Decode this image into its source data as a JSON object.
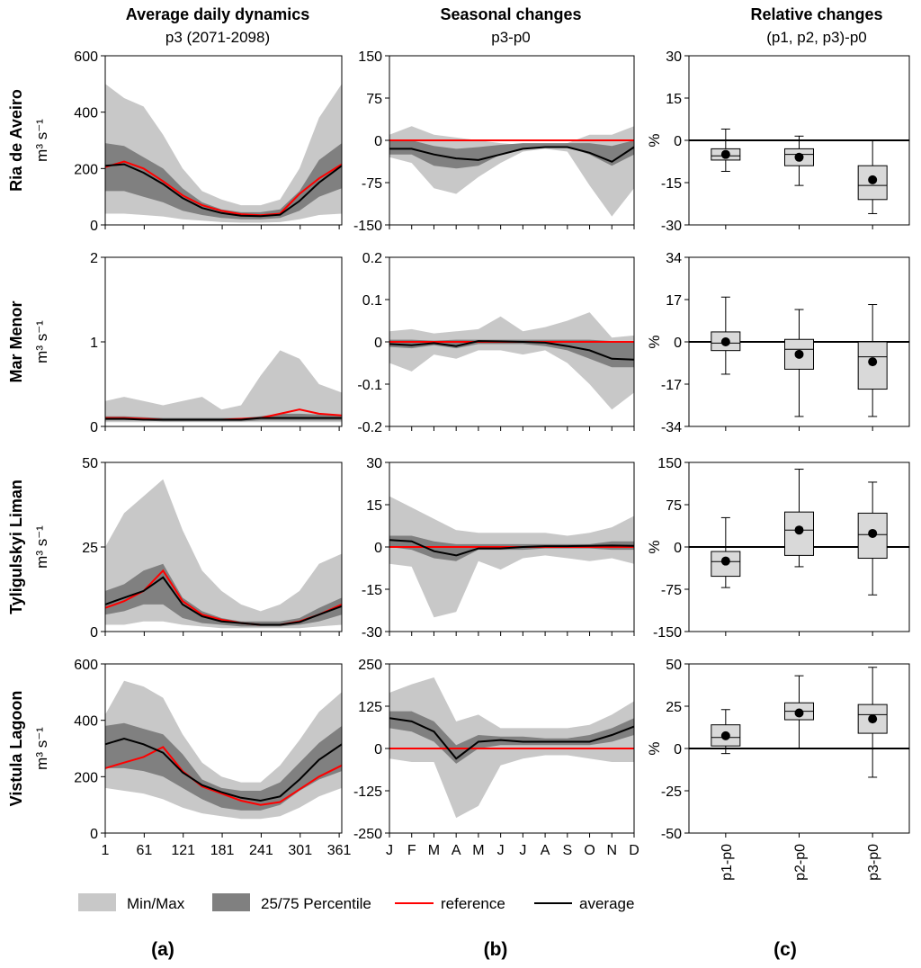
{
  "colors": {
    "minmax": "#c8c8c8",
    "percentile": "#808080",
    "reference": "#ff0000",
    "average": "#000000",
    "box_fill": "#d9d9d9",
    "zero_line": "#000000"
  },
  "column_titles": {
    "a_title": "Average daily dynamics",
    "a_subtitle": "p3 (2071-2098)",
    "b_title": "Seasonal changes",
    "b_subtitle": "p3-p0",
    "c_title": "Relative changes",
    "c_subtitle": "(p1, p2, p3)-p0"
  },
  "panel_labels": {
    "a": "(a)",
    "b": "(b)",
    "c": "(c)"
  },
  "legend": [
    "Min/Max",
    "25/75 Percentile",
    "reference",
    "average"
  ],
  "unit_label": "m³ s⁻¹",
  "percent_label": "%",
  "chart_data": {
    "type": "composite",
    "x_days_ticks": [
      "1",
      "61",
      "121",
      "181",
      "241",
      "301",
      "361"
    ],
    "months": [
      "J",
      "F",
      "M",
      "A",
      "M",
      "J",
      "J",
      "A",
      "S",
      "O",
      "N",
      "D"
    ],
    "box_categories": [
      "p1-p0",
      "p2-p0",
      "p3-p0"
    ],
    "rows": [
      {
        "name": "Ria de Aveiro",
        "daily": {
          "ylim": [
            0,
            600
          ],
          "yticks": [
            "0",
            "200",
            "400",
            "600"
          ],
          "days": [
            1,
            30,
            60,
            90,
            120,
            150,
            180,
            210,
            240,
            270,
            300,
            330,
            365
          ],
          "min": [
            40,
            40,
            35,
            30,
            20,
            15,
            10,
            8,
            8,
            10,
            20,
            35,
            40
          ],
          "max": [
            500,
            450,
            420,
            320,
            200,
            120,
            90,
            70,
            70,
            90,
            200,
            380,
            500
          ],
          "p25": [
            120,
            120,
            100,
            80,
            50,
            35,
            25,
            20,
            20,
            25,
            50,
            100,
            130
          ],
          "p75": [
            290,
            280,
            240,
            200,
            130,
            80,
            55,
            45,
            45,
            55,
            120,
            230,
            290
          ],
          "reference": [
            205,
            225,
            200,
            155,
            105,
            70,
            50,
            38,
            34,
            40,
            110,
            165,
            215
          ],
          "average": [
            210,
            215,
            185,
            145,
            95,
            60,
            42,
            33,
            31,
            36,
            85,
            150,
            210
          ]
        },
        "seasonal": {
          "ylim": [
            -150,
            150
          ],
          "yticks": [
            "-150",
            "-75",
            "0",
            "75",
            "150"
          ],
          "min": [
            -30,
            -40,
            -85,
            -95,
            -65,
            -40,
            -20,
            -15,
            -20,
            -80,
            -135,
            -85
          ],
          "max": [
            10,
            25,
            10,
            5,
            0,
            -5,
            -8,
            -10,
            -5,
            10,
            10,
            25
          ],
          "p25": [
            -25,
            -25,
            -45,
            -50,
            -45,
            -25,
            -15,
            -12,
            -12,
            -25,
            -45,
            -25
          ],
          "p75": [
            0,
            0,
            -10,
            -15,
            -12,
            -8,
            -5,
            -5,
            -5,
            -5,
            -10,
            0
          ],
          "average": [
            -15,
            -15,
            -25,
            -32,
            -35,
            -25,
            -15,
            -12,
            -12,
            -22,
            -38,
            -12
          ]
        },
        "boxes": {
          "ylim": [
            -30,
            30
          ],
          "yticks": [
            "-30",
            "-15",
            "0",
            "15",
            "30"
          ],
          "items": [
            {
              "min": -11,
              "q1": -7,
              "median": -5.5,
              "q3": -3,
              "max": 4,
              "mean": -5
            },
            {
              "min": -16,
              "q1": -9,
              "median": -5,
              "q3": -3,
              "max": 1.5,
              "mean": -6
            },
            {
              "min": -26,
              "q1": -21,
              "median": -16,
              "q3": -9,
              "max": 0,
              "mean": -14
            }
          ]
        }
      },
      {
        "name": "Mar Menor",
        "daily": {
          "ylim": [
            0,
            2
          ],
          "yticks": [
            "0",
            "1",
            "2"
          ],
          "days": [
            1,
            30,
            60,
            90,
            120,
            150,
            180,
            210,
            240,
            270,
            300,
            330,
            365
          ],
          "min": [
            0.05,
            0.05,
            0.05,
            0.05,
            0.05,
            0.05,
            0.05,
            0.05,
            0.05,
            0.05,
            0.05,
            0.05,
            0.05
          ],
          "max": [
            0.3,
            0.35,
            0.3,
            0.25,
            0.3,
            0.35,
            0.2,
            0.25,
            0.6,
            0.9,
            0.8,
            0.5,
            0.4
          ],
          "p25": [
            0.07,
            0.07,
            0.07,
            0.06,
            0.06,
            0.06,
            0.06,
            0.06,
            0.07,
            0.07,
            0.07,
            0.07,
            0.07
          ],
          "p75": [
            0.12,
            0.12,
            0.11,
            0.1,
            0.1,
            0.1,
            0.1,
            0.1,
            0.12,
            0.15,
            0.15,
            0.14,
            0.13
          ],
          "reference": [
            0.1,
            0.1,
            0.09,
            0.08,
            0.08,
            0.08,
            0.08,
            0.09,
            0.1,
            0.15,
            0.2,
            0.15,
            0.13
          ],
          "average": [
            0.09,
            0.09,
            0.08,
            0.08,
            0.08,
            0.08,
            0.08,
            0.08,
            0.1,
            0.1,
            0.1,
            0.1,
            0.1
          ]
        },
        "seasonal": {
          "ylim": [
            -0.2,
            0.2
          ],
          "yticks": [
            "-0.2",
            "-0.1",
            "0",
            "0.1",
            "0.2"
          ],
          "min": [
            -0.05,
            -0.07,
            -0.03,
            -0.04,
            -0.02,
            -0.02,
            -0.03,
            -0.02,
            -0.05,
            -0.1,
            -0.16,
            -0.12
          ],
          "max": [
            0.025,
            0.03,
            0.02,
            0.025,
            0.03,
            0.06,
            0.025,
            0.035,
            0.05,
            0.07,
            0.01,
            0.015
          ],
          "p25": [
            -0.012,
            -0.015,
            -0.008,
            -0.015,
            -0.005,
            -0.005,
            -0.005,
            -0.01,
            -0.02,
            -0.04,
            -0.06,
            -0.06
          ],
          "p75": [
            0.005,
            0.005,
            0.003,
            0.005,
            0.005,
            0.005,
            0.005,
            0.005,
            0.005,
            0.005,
            0.002,
            0.002
          ],
          "average": [
            -0.005,
            -0.008,
            -0.003,
            -0.01,
            0.002,
            0.001,
            0.0,
            -0.002,
            -0.01,
            -0.02,
            -0.04,
            -0.042
          ]
        },
        "boxes": {
          "ylim": [
            -34,
            34
          ],
          "yticks": [
            "-34",
            "-17",
            "0",
            "17",
            "34"
          ],
          "items": [
            {
              "min": -13,
              "q1": -3.5,
              "median": -0.5,
              "q3": 4,
              "max": 18,
              "mean": 0
            },
            {
              "min": -30,
              "q1": -11,
              "median": -3,
              "q3": 1,
              "max": 13,
              "mean": -5
            },
            {
              "min": -30,
              "q1": -19,
              "median": -6,
              "q3": 0,
              "max": 15,
              "mean": -8
            }
          ]
        }
      },
      {
        "name": "Tyligulskyi Liman",
        "daily": {
          "ylim": [
            0,
            50
          ],
          "yticks": [
            "0",
            "25",
            "50"
          ],
          "days": [
            1,
            30,
            60,
            90,
            120,
            150,
            180,
            210,
            240,
            270,
            300,
            330,
            365
          ],
          "min": [
            2,
            2,
            3,
            3,
            2,
            1.5,
            1,
            1,
            1,
            1,
            1,
            1.5,
            2
          ],
          "max": [
            25,
            35,
            40,
            45,
            30,
            18,
            12,
            8,
            6,
            8,
            12,
            20,
            23
          ],
          "p25": [
            5,
            6,
            8,
            8,
            4,
            2.5,
            2,
            1.5,
            1.5,
            1.5,
            2,
            3,
            5
          ],
          "p75": [
            12,
            14,
            18,
            20,
            10,
            6,
            4,
            3,
            3,
            3,
            4,
            7,
            10
          ],
          "reference": [
            7,
            9,
            12,
            18,
            9,
            5,
            3.5,
            2.5,
            2,
            2,
            3,
            5,
            8
          ],
          "average": [
            8,
            10,
            12,
            16,
            8,
            4.5,
            3,
            2.5,
            2,
            2,
            2.8,
            5,
            7.5
          ]
        },
        "seasonal": {
          "ylim": [
            -30,
            30
          ],
          "yticks": [
            "-30",
            "-15",
            "0",
            "15",
            "30"
          ],
          "min": [
            -6,
            -7,
            -25,
            -23,
            -5,
            -8,
            -4,
            -3,
            -4,
            -5,
            -4,
            -6
          ],
          "max": [
            18,
            14,
            10,
            6,
            5,
            5,
            5,
            5,
            4,
            5,
            7,
            11
          ],
          "p25": [
            0,
            -1,
            -4,
            -5,
            -1,
            -1,
            -1,
            -0.5,
            -0.5,
            -0.5,
            -1,
            -1
          ],
          "p75": [
            4,
            4,
            2,
            1,
            1,
            1,
            1,
            1,
            1,
            1,
            2,
            2
          ],
          "average": [
            2.5,
            2,
            -1.5,
            -3,
            -0.5,
            -0.5,
            0,
            0.3,
            0.3,
            0.4,
            0.5,
            0.4
          ]
        },
        "boxes": {
          "ylim": [
            -150,
            150
          ],
          "yticks": [
            "-150",
            "-75",
            "0",
            "75",
            "150"
          ],
          "items": [
            {
              "min": -72,
              "q1": -52,
              "median": -26,
              "q3": -8,
              "max": 52,
              "mean": -25
            },
            {
              "min": -35,
              "q1": -15,
              "median": 30,
              "q3": 62,
              "max": 138,
              "mean": 30
            },
            {
              "min": -85,
              "q1": -20,
              "median": 22,
              "q3": 60,
              "max": 115,
              "mean": 24
            }
          ]
        }
      },
      {
        "name": "Vistula Lagoon",
        "daily": {
          "ylim": [
            0,
            600
          ],
          "yticks": [
            "0",
            "200",
            "400",
            "600"
          ],
          "days": [
            1,
            30,
            60,
            90,
            120,
            150,
            180,
            210,
            240,
            270,
            300,
            330,
            365
          ],
          "min": [
            160,
            150,
            140,
            120,
            90,
            70,
            60,
            50,
            50,
            60,
            90,
            130,
            160
          ],
          "max": [
            420,
            540,
            520,
            480,
            350,
            250,
            200,
            180,
            180,
            240,
            330,
            430,
            500
          ],
          "p25": [
            230,
            230,
            220,
            200,
            160,
            120,
            90,
            80,
            80,
            100,
            150,
            190,
            220
          ],
          "p75": [
            380,
            390,
            370,
            350,
            280,
            190,
            160,
            150,
            150,
            180,
            250,
            320,
            380
          ],
          "reference": [
            230,
            250,
            270,
            305,
            220,
            165,
            140,
            115,
            100,
            110,
            155,
            200,
            240
          ],
          "average": [
            315,
            335,
            315,
            285,
            215,
            170,
            145,
            125,
            115,
            130,
            190,
            260,
            315
          ]
        },
        "seasonal": {
          "ylim": [
            -250,
            250
          ],
          "yticks": [
            "-250",
            "-125",
            "0",
            "125",
            "250"
          ],
          "min": [
            -30,
            -40,
            -40,
            -205,
            -170,
            -50,
            -30,
            -20,
            -20,
            -30,
            -40,
            -40
          ],
          "max": [
            165,
            190,
            210,
            80,
            100,
            60,
            60,
            60,
            60,
            70,
            100,
            140
          ],
          "p25": [
            60,
            50,
            20,
            -45,
            0,
            10,
            10,
            10,
            10,
            10,
            20,
            40
          ],
          "p75": [
            110,
            110,
            80,
            10,
            40,
            35,
            35,
            30,
            30,
            40,
            60,
            90
          ],
          "average": [
            90,
            80,
            50,
            -30,
            20,
            25,
            20,
            20,
            20,
            20,
            40,
            65
          ]
        },
        "boxes": {
          "ylim": [
            -50,
            50
          ],
          "yticks": [
            "-50",
            "-25",
            "0",
            "25",
            "50"
          ],
          "items": [
            {
              "min": -3,
              "q1": 1.5,
              "median": 6.5,
              "q3": 14,
              "max": 23,
              "mean": 7.5
            },
            {
              "min": 0,
              "q1": 17,
              "median": 22,
              "q3": 27,
              "max": 43,
              "mean": 21
            },
            {
              "min": -17,
              "q1": 9,
              "median": 20,
              "q3": 26,
              "max": 48,
              "mean": 17.5
            }
          ]
        }
      }
    ]
  }
}
